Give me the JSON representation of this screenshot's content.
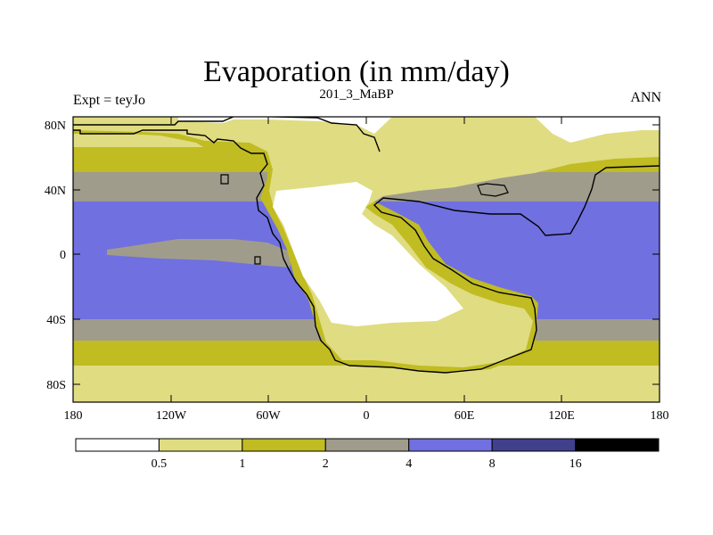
{
  "title": "Evaporation (in mm/day)",
  "subtitle": "201_3_MaBP",
  "left_subtitle": "Expt = teyJo",
  "right_subtitle": "ANN",
  "lat_ticks": [
    {
      "label": "80N",
      "lat": 80
    },
    {
      "label": "40N",
      "lat": 40
    },
    {
      "label": "0",
      "lat": 0
    },
    {
      "label": "40S",
      "lat": -40
    },
    {
      "label": "80S",
      "lat": -80
    }
  ],
  "lon_ticks": [
    {
      "label": "180",
      "lon": -180
    },
    {
      "label": "120W",
      "lon": -120
    },
    {
      "label": "60W",
      "lon": -60
    },
    {
      "label": "0",
      "lon": 0
    },
    {
      "label": "60E",
      "lon": 60
    },
    {
      "label": "120E",
      "lon": 120
    },
    {
      "label": "180",
      "lon": 180
    }
  ],
  "colorbar": {
    "colors": [
      "#ffffff",
      "#e0dc82",
      "#c0bc22",
      "#a09c8c",
      "#7070e0",
      "#40408c",
      "#000000"
    ],
    "labels": [
      "0.5",
      "1",
      "2",
      "4",
      "8",
      "16"
    ]
  }
}
